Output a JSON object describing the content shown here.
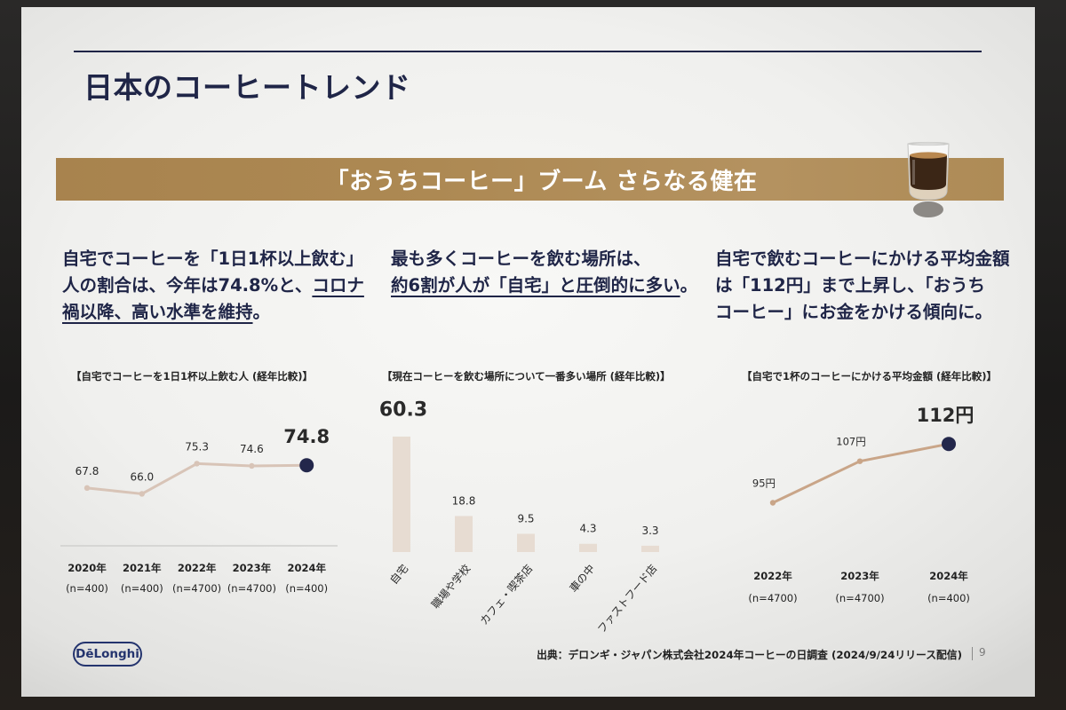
{
  "theme": {
    "text_color": "#1f2547",
    "banner_color": "#ad8953",
    "highlight_color": "#23274b"
  },
  "header": {
    "title": "日本のコーヒートレンド"
  },
  "banner": {
    "text": "「おうちコーヒー」ブーム さらなる健在",
    "icon": "coffee-glass-icon"
  },
  "columns": [
    {
      "lines": [
        [
          "自宅でコーヒーを「1日1杯以上飲む」"
        ],
        [
          "人の割合は、今年は74.8%と、",
          "コロナ"
        ],
        [
          "禍以降、高い水準を維持",
          "。"
        ]
      ]
    },
    {
      "lines": [
        [
          "最も多くコーヒーを飲む場所は、"
        ],
        [
          "約6割が人が「自宅」と圧倒的に多い",
          "。"
        ]
      ]
    },
    {
      "lines": [
        [
          "自宅で飲むコーヒーにかける平均金額"
        ],
        [
          "は「112円」まで上昇し、「おうち"
        ],
        [
          "コーヒー」にお金をかける傾向に。"
        ]
      ]
    }
  ],
  "chart_data": [
    {
      "type": "line",
      "title": "【自宅でコーヒーを1日1杯以上飲む人 (経年比較)】",
      "categories": [
        "2020年",
        "2021年",
        "2022年",
        "2023年",
        "2024年"
      ],
      "category_sublabels": [
        "(n=400)",
        "(n=400)",
        "(n=4700)",
        "(n=4700)",
        "(n=400)"
      ],
      "values": [
        67.8,
        66.0,
        75.3,
        74.6,
        74.8
      ],
      "data_labels": [
        "67.8",
        "66.0",
        "75.3",
        "74.6",
        "74.8"
      ],
      "highlight_index": 4,
      "ylim": [
        50,
        100
      ],
      "grid": false,
      "line_color": "#d8c4b7",
      "highlight_color": "#23274b"
    },
    {
      "type": "bar",
      "title": "【現在コーヒーを飲む場所について一番多い場所 (経年比較)】",
      "categories": [
        "自宅",
        "職場や学校",
        "カフェ・喫茶店",
        "車の中",
        "ファストフード店"
      ],
      "values": [
        60.3,
        18.8,
        9.5,
        4.3,
        3.3
      ],
      "data_labels": [
        "60.3",
        "18.8",
        "9.5",
        "4.3",
        "3.3"
      ],
      "highlight_index": 0,
      "ylim": [
        0,
        70
      ],
      "grid": false,
      "bar_color": "#e7dcd2"
    },
    {
      "type": "line",
      "title": "【自宅で1杯のコーヒーにかける平均金額 (経年比較)】",
      "categories": [
        "2022年",
        "2023年",
        "2024年"
      ],
      "category_sublabels": [
        "(n=4700)",
        "(n=4700)",
        "(n=400)"
      ],
      "values": [
        95,
        107,
        112
      ],
      "data_labels": [
        "95円",
        "107円",
        "112円"
      ],
      "highlight_index": 2,
      "ylim": [
        80,
        130
      ],
      "grid": false,
      "line_color": "#c9a588",
      "highlight_color": "#23274b"
    }
  ],
  "footer": {
    "logo_text": "DēLonghi",
    "source": "出典：デロンギ・ジャパン株式会社2024年コーヒーの日調査 (2024/9/24リリース配信)",
    "page_number": "9"
  }
}
